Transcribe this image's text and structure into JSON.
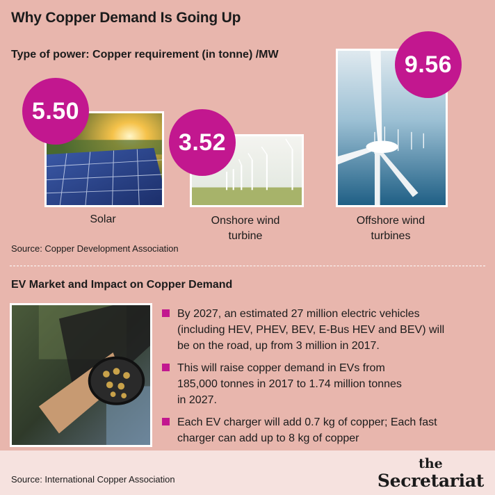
{
  "title": "Why Copper Demand Is Going Up",
  "chart_data": {
    "type": "table",
    "title": "Type of power: Copper requirement (in tonne) /MW",
    "categories": [
      "Solar",
      "Onshore wind turbine",
      "Offshore wind turbines"
    ],
    "values": [
      5.5,
      3.52,
      9.56
    ],
    "value_labels": [
      "5.50",
      "3.52",
      "9.56"
    ],
    "caption_lines": [
      [
        "Solar"
      ],
      [
        "Onshore wind",
        "turbine"
      ],
      [
        "Offshore wind",
        "turbines"
      ]
    ],
    "source": "Source: Copper Development Association",
    "badge_color": "#c2178f"
  },
  "ev": {
    "title": "EV Market and Impact on Copper Demand",
    "bullets": [
      [
        "By 2027, an estimated 27 million electric vehicles",
        "(including HEV, PHEV, BEV, E-Bus HEV and BEV) will",
        "be on the road, up from 3 million in 2017."
      ],
      [
        "This will raise copper demand in EVs from",
        "185,000 tonnes in 2017 to 1.74 million tonnes",
        "in 2027."
      ],
      [
        "Each EV charger will add 0.7 kg of copper; Each fast",
        "charger can add up to 8 kg of copper"
      ]
    ]
  },
  "footer": {
    "source": "Source: International Copper Association",
    "logo_top": "the",
    "logo_bottom": "Secretariat"
  },
  "colors": {
    "background": "#e8b6ad",
    "accent": "#c2178f",
    "footer": "#f6e2df"
  },
  "icons": [
    "solar-panel-photo",
    "onshore-wind-photo",
    "offshore-wind-photo",
    "ev-charger-photo"
  ]
}
